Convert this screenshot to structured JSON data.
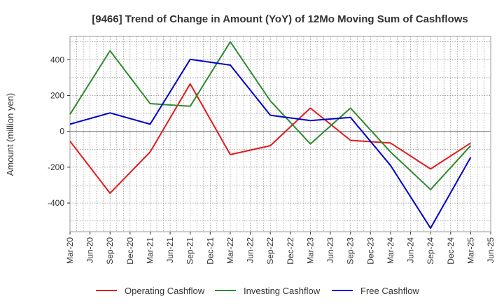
{
  "chart_data": {
    "type": "line",
    "title": "[9466]  Trend of Change in Amount (YoY) of 12Mo Moving Sum of Cashflows",
    "xlabel": "",
    "ylabel": "Amount (million yen)",
    "ylim": [
      -560,
      530
    ],
    "yticks": [
      400,
      200,
      0,
      -200,
      -400
    ],
    "ytick_labels": [
      "400",
      "200",
      "0",
      "-200",
      "-400"
    ],
    "categories": [
      "Mar-20",
      "Jun-20",
      "Sep-20",
      "Dec-20",
      "Mar-21",
      "Jun-21",
      "Sep-21",
      "Dec-21",
      "Mar-22",
      "Jun-22",
      "Sep-22",
      "Dec-22",
      "Mar-23",
      "Jun-23",
      "Sep-23",
      "Dec-23",
      "Mar-24",
      "Jun-24",
      "Sep-24",
      "Dec-24",
      "Mar-25",
      "Jun-25"
    ],
    "grid": true,
    "legend_position": "bottom",
    "series": [
      {
        "name": "Operating Cashflow",
        "color": "#e31a1c",
        "values": [
          -55,
          null,
          -345,
          null,
          -115,
          null,
          265,
          null,
          -130,
          null,
          -80,
          null,
          130,
          null,
          -50,
          null,
          -65,
          null,
          -210,
          null,
          -65,
          null
        ]
      },
      {
        "name": "Investing Cashflow",
        "color": "#2e8b2e",
        "values": [
          95,
          null,
          450,
          null,
          155,
          null,
          140,
          null,
          500,
          null,
          170,
          null,
          -70,
          null,
          130,
          null,
          -115,
          null,
          -325,
          null,
          -80,
          null
        ]
      },
      {
        "name": "Free Cashflow",
        "color": "#0000cc",
        "values": [
          40,
          null,
          103,
          null,
          40,
          null,
          402,
          null,
          370,
          null,
          90,
          null,
          60,
          null,
          78,
          null,
          -190,
          null,
          -540,
          null,
          -145,
          null
        ]
      }
    ]
  }
}
